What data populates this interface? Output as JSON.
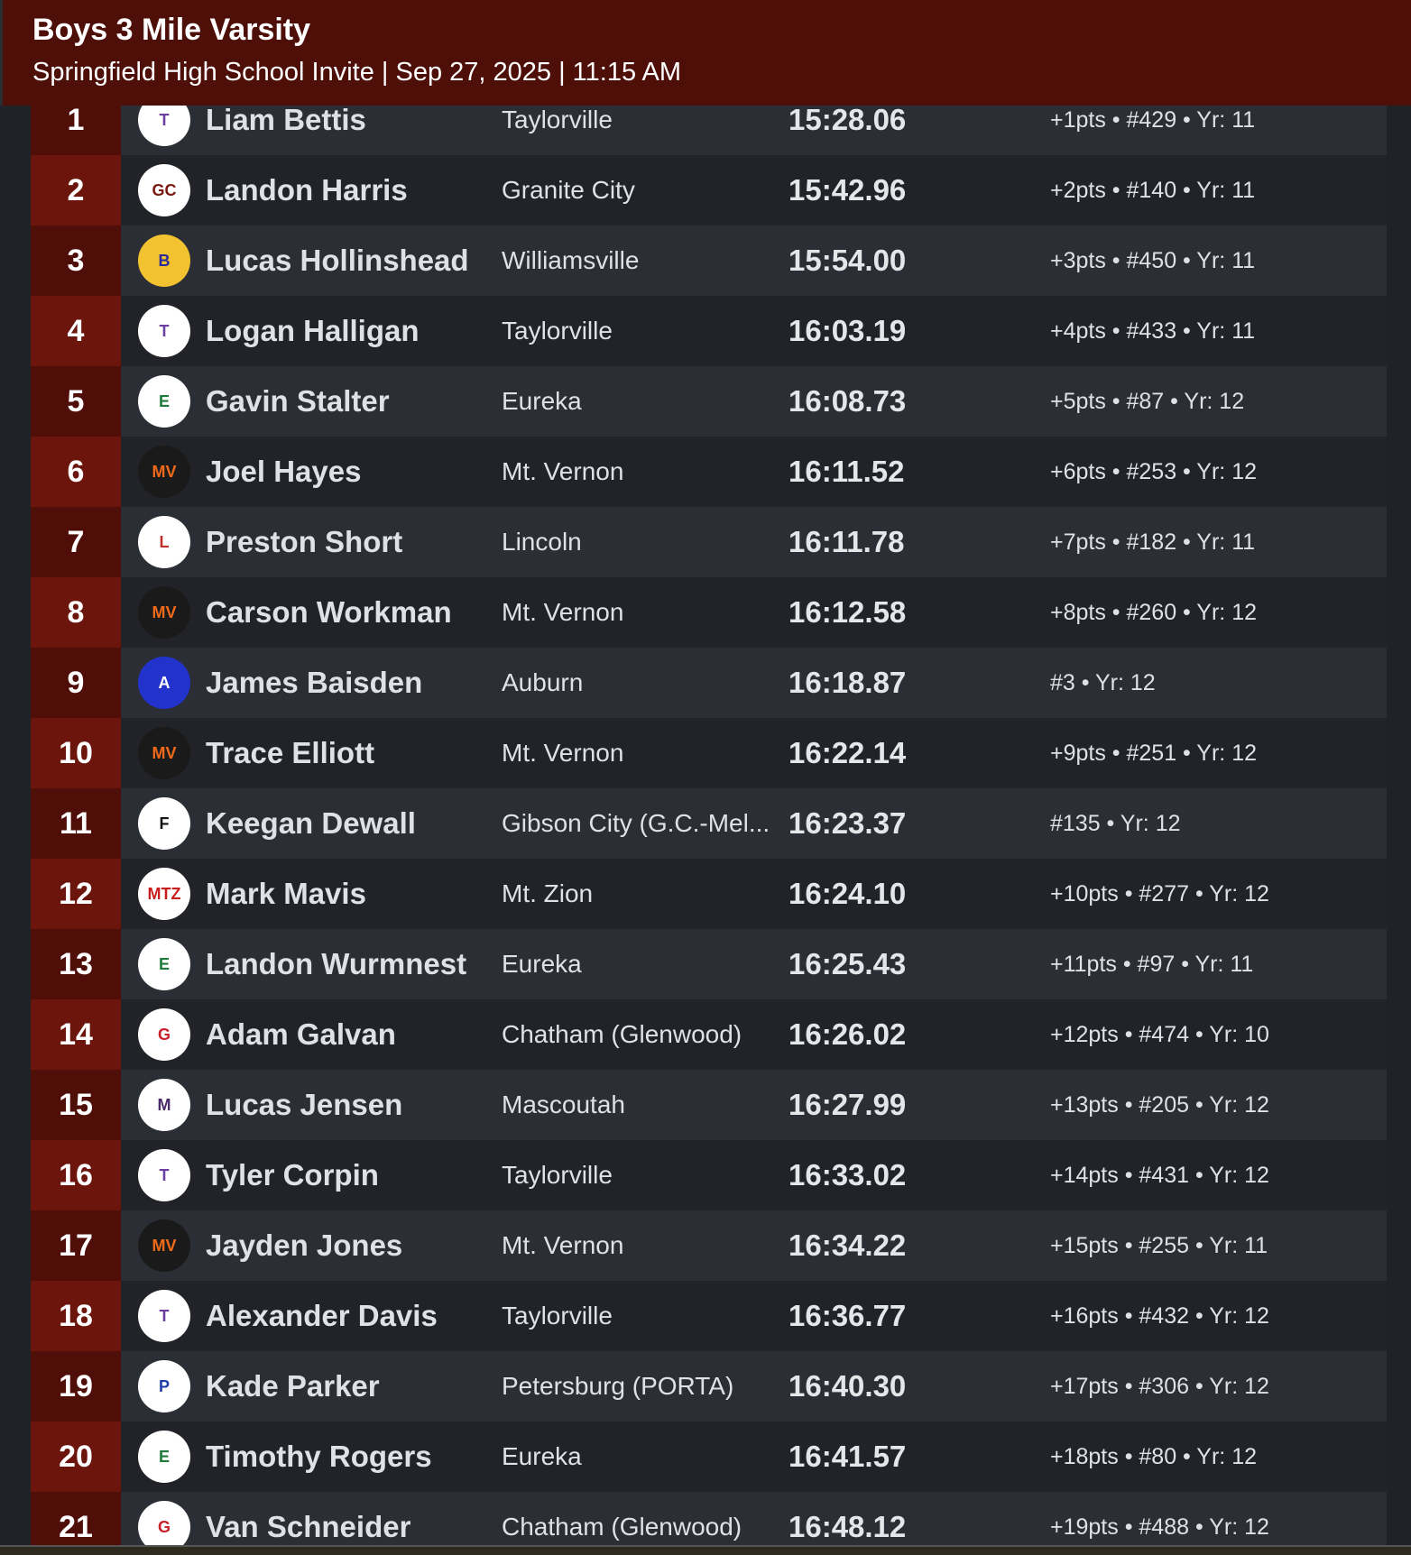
{
  "header": {
    "title": "Boys 3 Mile Varsity",
    "subtitle": "Springfield High School Invite | Sep 27, 2025 | 11:15 AM"
  },
  "colors": {
    "header_bg": "#4e0f08",
    "rank_odd": "#4f0f08",
    "rank_even": "#6c150c",
    "row_odd": "#2b2e34",
    "row_even": "#212328"
  },
  "results": [
    {
      "place": "1",
      "name": "Liam Bettis",
      "school": "Taylorville",
      "time": "15:28.06",
      "info": "+1pts • #429 • Yr: 11",
      "logo": "taylorville-tornado-logo"
    },
    {
      "place": "2",
      "name": "Landon Harris",
      "school": "Granite City",
      "time": "15:42.96",
      "info": "+2pts • #140 • Yr: 11",
      "logo": "granite-city-warrior-logo"
    },
    {
      "place": "3",
      "name": "Lucas Hollinshead",
      "school": "Williamsville",
      "time": "15:54.00",
      "info": "+3pts • #450 • Yr: 11",
      "logo": "williamsville-bullets-logo"
    },
    {
      "place": "4",
      "name": "Logan Halligan",
      "school": "Taylorville",
      "time": "16:03.19",
      "info": "+4pts • #433 • Yr: 11",
      "logo": "taylorville-tornado-logo"
    },
    {
      "place": "5",
      "name": "Gavin Stalter",
      "school": "Eureka",
      "time": "16:08.73",
      "info": "+5pts • #87 • Yr: 12",
      "logo": "eureka-hornet-logo"
    },
    {
      "place": "6",
      "name": "Joel Hayes",
      "school": "Mt. Vernon",
      "time": "16:11.52",
      "info": "+6pts • #253 • Yr: 12",
      "logo": "mt-vernon-mv-logo"
    },
    {
      "place": "7",
      "name": "Preston Short",
      "school": "Lincoln",
      "time": "16:11.78",
      "info": "+7pts • #182 • Yr: 11",
      "logo": "lincoln-railsplitter-logo"
    },
    {
      "place": "8",
      "name": "Carson Workman",
      "school": "Mt. Vernon",
      "time": "16:12.58",
      "info": "+8pts • #260 • Yr: 12",
      "logo": "mt-vernon-mv-logo"
    },
    {
      "place": "9",
      "name": "James Baisden",
      "school": "Auburn",
      "time": "16:18.87",
      "info": "#3 • Yr: 12",
      "logo": "auburn-trojan-logo"
    },
    {
      "place": "10",
      "name": "Trace Elliott",
      "school": "Mt. Vernon",
      "time": "16:22.14",
      "info": "+9pts • #251 • Yr: 12",
      "logo": "mt-vernon-mv-logo"
    },
    {
      "place": "11",
      "name": "Keegan Dewall",
      "school": "Gibson City (G.C.-Mel...",
      "time": "16:23.37",
      "info": "#135 • Yr: 12",
      "logo": "gibson-city-falcon-logo"
    },
    {
      "place": "12",
      "name": "Mark Mavis",
      "school": "Mt. Zion",
      "time": "16:24.10",
      "info": "+10pts • #277 • Yr: 12",
      "logo": "mt-zion-mtz-logo"
    },
    {
      "place": "13",
      "name": "Landon Wurmnest",
      "school": "Eureka",
      "time": "16:25.43",
      "info": "+11pts • #97 • Yr: 11",
      "logo": "eureka-hornet-logo"
    },
    {
      "place": "14",
      "name": "Adam Galvan",
      "school": "Chatham (Glenwood)",
      "time": "16:26.02",
      "info": "+12pts • #474 • Yr: 10",
      "logo": "glenwood-titans-logo"
    },
    {
      "place": "15",
      "name": "Lucas Jensen",
      "school": "Mascoutah",
      "time": "16:27.99",
      "info": "+13pts • #205 • Yr: 12",
      "logo": "mascoutah-m-logo"
    },
    {
      "place": "16",
      "name": "Tyler Corpin",
      "school": "Taylorville",
      "time": "16:33.02",
      "info": "+14pts • #431 • Yr: 12",
      "logo": "taylorville-tornado-logo"
    },
    {
      "place": "17",
      "name": "Jayden Jones",
      "school": "Mt. Vernon",
      "time": "16:34.22",
      "info": "+15pts • #255 • Yr: 11",
      "logo": "mt-vernon-mv-logo"
    },
    {
      "place": "18",
      "name": "Alexander Davis",
      "school": "Taylorville",
      "time": "16:36.77",
      "info": "+16pts • #432 • Yr: 12",
      "logo": "taylorville-tornado-logo"
    },
    {
      "place": "19",
      "name": "Kade Parker",
      "school": "Petersburg (PORTA)",
      "time": "16:40.30",
      "info": "+17pts • #306 • Yr: 12",
      "logo": "porta-bluejay-logo"
    },
    {
      "place": "20",
      "name": "Timothy Rogers",
      "school": "Eureka",
      "time": "16:41.57",
      "info": "+18pts • #80 • Yr: 12",
      "logo": "eureka-hornet-logo"
    },
    {
      "place": "21",
      "name": "Van Schneider",
      "school": "Chatham (Glenwood)",
      "time": "16:48.12",
      "info": "+19pts • #488 • Yr: 12",
      "logo": "glenwood-titans-logo"
    }
  ]
}
